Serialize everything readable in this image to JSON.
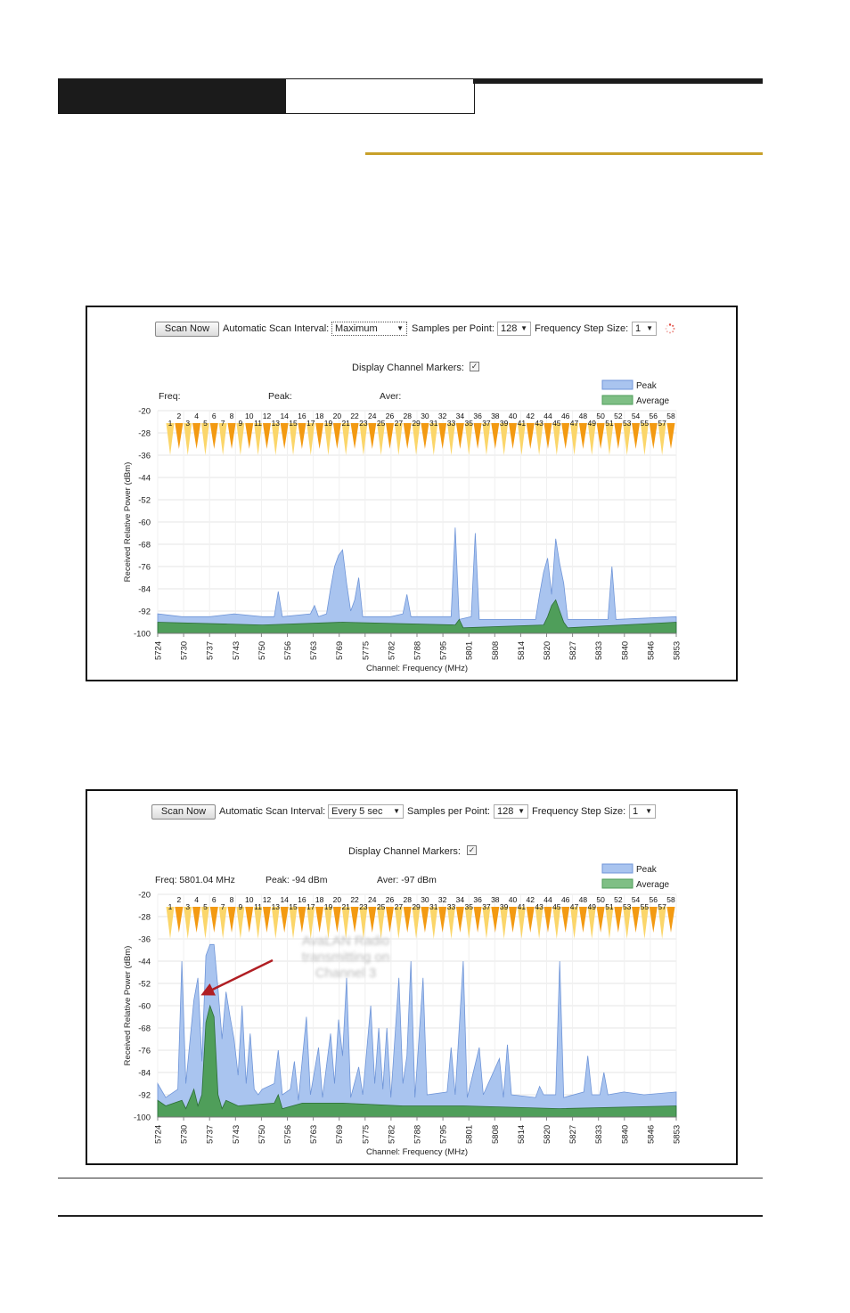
{
  "panels": [
    {
      "scan_button": "Scan Now",
      "interval_label": "Automatic Scan Interval:",
      "interval_value": "Maximum",
      "samples_label": "Samples per Point:",
      "samples_value": "128",
      "step_label": "Frequency Step Size:",
      "step_value": "1",
      "markers_label": "Display Channel Markers:",
      "freq_readout": "Freq:",
      "peak_readout": "Peak:",
      "aver_readout": "Aver:",
      "loading_spinner": true,
      "annotation": ""
    },
    {
      "scan_button": "Scan Now",
      "interval_label": "Automatic Scan Interval:",
      "interval_value": "Every 5 sec",
      "samples_label": "Samples per Point:",
      "samples_value": "128",
      "step_label": "Frequency Step Size:",
      "step_value": "1",
      "markers_label": "Display Channel Markers:",
      "freq_readout": "Freq: 5801.04 MHz",
      "peak_readout": "Peak: -94 dBm",
      "aver_readout": "Aver: -97 dBm",
      "loading_spinner": false,
      "annotation": "AvaLAN Radio transmitting on Channel 3"
    }
  ],
  "chart_data": [
    {
      "type": "area",
      "xlabel": "Channel: Frequency (MHz)",
      "ylabel": "Received Relative Power (dBm)",
      "x_ticks": [
        "5724",
        "5730",
        "5737",
        "5743",
        "5750",
        "5756",
        "5763",
        "5769",
        "5775",
        "5782",
        "5788",
        "5795",
        "5801",
        "5808",
        "5814",
        "5820",
        "5827",
        "5833",
        "5840",
        "5846",
        "5853"
      ],
      "y_ticks": [
        -20,
        -28,
        -36,
        -44,
        -52,
        -60,
        -68,
        -76,
        -84,
        -92,
        -100
      ],
      "ylim": [
        -100,
        -20
      ],
      "xlim": [
        5724,
        5853
      ],
      "legend": [
        "Peak",
        "Average"
      ],
      "legend_position": "top-right",
      "grid": true,
      "channels": [
        "1",
        "2",
        "3",
        "4",
        "5",
        "6",
        "7",
        "8",
        "9",
        "10",
        "11",
        "12",
        "13",
        "14",
        "15",
        "16",
        "17",
        "18",
        "19",
        "20",
        "21",
        "22",
        "23",
        "24",
        "25",
        "26",
        "27",
        "28",
        "29",
        "30",
        "31",
        "32",
        "33",
        "34",
        "35",
        "36",
        "37",
        "38",
        "39",
        "40",
        "41",
        "42",
        "43",
        "44",
        "45",
        "46",
        "47",
        "48",
        "49",
        "50",
        "51",
        "52",
        "53",
        "54",
        "55",
        "56",
        "57",
        "58"
      ],
      "peak_series": [
        [
          5724,
          -93
        ],
        [
          5730,
          -94
        ],
        [
          5737,
          -94
        ],
        [
          5743,
          -93
        ],
        [
          5750,
          -94
        ],
        [
          5753,
          -94
        ],
        [
          5754,
          -85
        ],
        [
          5755,
          -94
        ],
        [
          5762,
          -93
        ],
        [
          5763,
          -90
        ],
        [
          5764,
          -94
        ],
        [
          5766,
          -93
        ],
        [
          5767,
          -84
        ],
        [
          5768,
          -76
        ],
        [
          5769,
          -72
        ],
        [
          5770,
          -70
        ],
        [
          5771,
          -82
        ],
        [
          5772,
          -92
        ],
        [
          5773,
          -88
        ],
        [
          5774,
          -80
        ],
        [
          5775,
          -94
        ],
        [
          5782,
          -94
        ],
        [
          5785,
          -93
        ],
        [
          5786,
          -86
        ],
        [
          5787,
          -94
        ],
        [
          5797,
          -94
        ],
        [
          5798,
          -62
        ],
        [
          5799,
          -95
        ],
        [
          5802,
          -94
        ],
        [
          5803,
          -64
        ],
        [
          5804,
          -95
        ],
        [
          5818,
          -95
        ],
        [
          5819,
          -86
        ],
        [
          5820,
          -78
        ],
        [
          5821,
          -73
        ],
        [
          5822,
          -86
        ],
        [
          5823,
          -66
        ],
        [
          5824,
          -75
        ],
        [
          5825,
          -82
        ],
        [
          5826,
          -95
        ],
        [
          5836,
          -95
        ],
        [
          5837,
          -76
        ],
        [
          5838,
          -95
        ],
        [
          5853,
          -94
        ]
      ],
      "avg_series": [
        [
          5724,
          -96
        ],
        [
          5750,
          -97
        ],
        [
          5770,
          -96
        ],
        [
          5798,
          -97
        ],
        [
          5799,
          -95
        ],
        [
          5800,
          -98
        ],
        [
          5820,
          -97
        ],
        [
          5821,
          -94
        ],
        [
          5822,
          -90
        ],
        [
          5823,
          -88
        ],
        [
          5824,
          -92
        ],
        [
          5825,
          -96
        ],
        [
          5826,
          -98
        ],
        [
          5853,
          -96
        ]
      ]
    },
    {
      "type": "area",
      "xlabel": "Channel: Frequency (MHz)",
      "ylabel": "Received Relative Power (dBm)",
      "x_ticks": [
        "5724",
        "5730",
        "5737",
        "5743",
        "5750",
        "5756",
        "5763",
        "5769",
        "5775",
        "5782",
        "5788",
        "5795",
        "5801",
        "5808",
        "5814",
        "5820",
        "5827",
        "5833",
        "5840",
        "5846",
        "5853"
      ],
      "y_ticks": [
        -20,
        -28,
        -36,
        -44,
        -52,
        -60,
        -68,
        -76,
        -84,
        -92,
        -100
      ],
      "ylim": [
        -100,
        -20
      ],
      "xlim": [
        5724,
        5853
      ],
      "legend": [
        "Peak",
        "Average"
      ],
      "legend_position": "top-right",
      "grid": true,
      "channels": [
        "1",
        "2",
        "3",
        "4",
        "5",
        "6",
        "7",
        "8",
        "9",
        "10",
        "11",
        "12",
        "13",
        "14",
        "15",
        "16",
        "17",
        "18",
        "19",
        "20",
        "21",
        "22",
        "23",
        "24",
        "25",
        "26",
        "27",
        "28",
        "29",
        "30",
        "31",
        "32",
        "33",
        "34",
        "35",
        "36",
        "37",
        "38",
        "39",
        "40",
        "41",
        "42",
        "43",
        "44",
        "45",
        "46",
        "47",
        "48",
        "49",
        "50",
        "51",
        "52",
        "53",
        "54",
        "55",
        "56",
        "57",
        "58"
      ],
      "peak_series": [
        [
          5724,
          -88
        ],
        [
          5726,
          -93
        ],
        [
          5729,
          -90
        ],
        [
          5730,
          -44
        ],
        [
          5731,
          -88
        ],
        [
          5733,
          -58
        ],
        [
          5734,
          -50
        ],
        [
          5735,
          -80
        ],
        [
          5736,
          -42
        ],
        [
          5737,
          -38
        ],
        [
          5738,
          -38
        ],
        [
          5739,
          -54
        ],
        [
          5740,
          -72
        ],
        [
          5741,
          -55
        ],
        [
          5742,
          -64
        ],
        [
          5743,
          -72
        ],
        [
          5744,
          -85
        ],
        [
          5745,
          -60
        ],
        [
          5746,
          -88
        ],
        [
          5747,
          -70
        ],
        [
          5748,
          -90
        ],
        [
          5749,
          -92
        ],
        [
          5750,
          -90
        ],
        [
          5753,
          -88
        ],
        [
          5754,
          -76
        ],
        [
          5755,
          -92
        ],
        [
          5757,
          -90
        ],
        [
          5758,
          -80
        ],
        [
          5759,
          -94
        ],
        [
          5761,
          -64
        ],
        [
          5762,
          -92
        ],
        [
          5764,
          -75
        ],
        [
          5765,
          -93
        ],
        [
          5767,
          -70
        ],
        [
          5768,
          -88
        ],
        [
          5769,
          -65
        ],
        [
          5770,
          -78
        ],
        [
          5771,
          -50
        ],
        [
          5772,
          -93
        ],
        [
          5774,
          -82
        ],
        [
          5775,
          -92
        ],
        [
          5777,
          -60
        ],
        [
          5778,
          -88
        ],
        [
          5779,
          -68
        ],
        [
          5780,
          -90
        ],
        [
          5781,
          -68
        ],
        [
          5782,
          -93
        ],
        [
          5784,
          -50
        ],
        [
          5785,
          -88
        ],
        [
          5786,
          -78
        ],
        [
          5787,
          -44
        ],
        [
          5788,
          -93
        ],
        [
          5790,
          -50
        ],
        [
          5791,
          -92
        ],
        [
          5796,
          -91
        ],
        [
          5797,
          -75
        ],
        [
          5798,
          -92
        ],
        [
          5800,
          -44
        ],
        [
          5801,
          -93
        ],
        [
          5804,
          -75
        ],
        [
          5805,
          -92
        ],
        [
          5809,
          -79
        ],
        [
          5810,
          -93
        ],
        [
          5811,
          -74
        ],
        [
          5812,
          -92
        ],
        [
          5818,
          -93
        ],
        [
          5819,
          -89
        ],
        [
          5820,
          -92
        ],
        [
          5823,
          -92
        ],
        [
          5824,
          -44
        ],
        [
          5825,
          -93
        ],
        [
          5830,
          -91
        ],
        [
          5831,
          -78
        ],
        [
          5832,
          -92
        ],
        [
          5834,
          -92
        ],
        [
          5835,
          -84
        ],
        [
          5836,
          -92
        ],
        [
          5840,
          -91
        ],
        [
          5845,
          -92
        ],
        [
          5853,
          -91
        ]
      ],
      "avg_series": [
        [
          5724,
          -94
        ],
        [
          5726,
          -96
        ],
        [
          5730,
          -94
        ],
        [
          5731,
          -97
        ],
        [
          5733,
          -90
        ],
        [
          5734,
          -96
        ],
        [
          5735,
          -92
        ],
        [
          5736,
          -66
        ],
        [
          5737,
          -60
        ],
        [
          5738,
          -64
        ],
        [
          5739,
          -92
        ],
        [
          5740,
          -97
        ],
        [
          5741,
          -94
        ],
        [
          5744,
          -96
        ],
        [
          5753,
          -95
        ],
        [
          5754,
          -92
        ],
        [
          5755,
          -97
        ],
        [
          5760,
          -95
        ],
        [
          5770,
          -95
        ],
        [
          5785,
          -96
        ],
        [
          5800,
          -96
        ],
        [
          5824,
          -97
        ],
        [
          5853,
          -96
        ]
      ]
    }
  ]
}
